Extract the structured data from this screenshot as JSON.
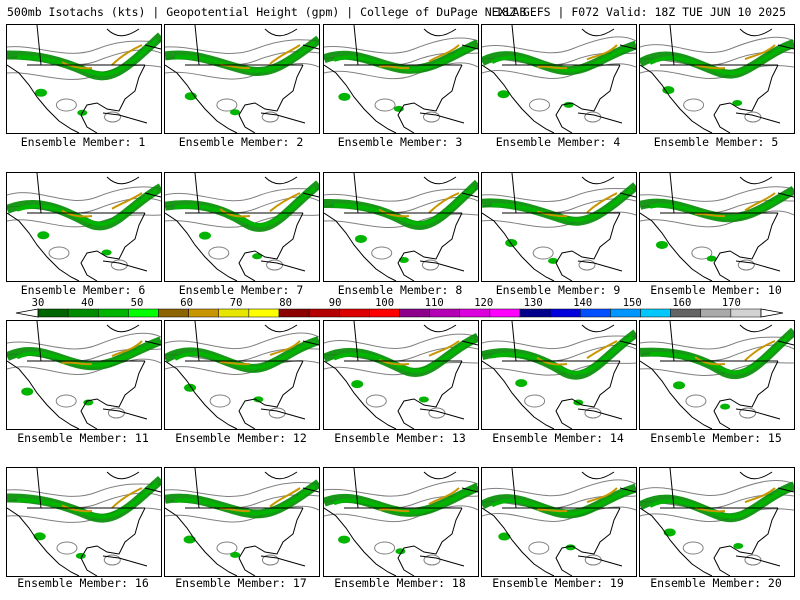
{
  "header": {
    "title_left": "500mb Isotachs (kts) | Geopotential Height (gpm) | College of DuPage NEXLAB",
    "title_right": "18Z GEFS | F072 Valid: 18Z TUE JUN 10 2025"
  },
  "members": [
    {
      "label": "Ensemble Member: 1"
    },
    {
      "label": "Ensemble Member: 2"
    },
    {
      "label": "Ensemble Member: 3"
    },
    {
      "label": "Ensemble Member: 4"
    },
    {
      "label": "Ensemble Member: 5"
    },
    {
      "label": "Ensemble Member: 6"
    },
    {
      "label": "Ensemble Member: 7"
    },
    {
      "label": "Ensemble Member: 8"
    },
    {
      "label": "Ensemble Member: 9"
    },
    {
      "label": "Ensemble Member: 10"
    },
    {
      "label": "Ensemble Member: 11"
    },
    {
      "label": "Ensemble Member: 12"
    },
    {
      "label": "Ensemble Member: 13"
    },
    {
      "label": "Ensemble Member: 14"
    },
    {
      "label": "Ensemble Member: 15"
    },
    {
      "label": "Ensemble Member: 16"
    },
    {
      "label": "Ensemble Member: 17"
    },
    {
      "label": "Ensemble Member: 18"
    },
    {
      "label": "Ensemble Member: 19"
    },
    {
      "label": "Ensemble Member: 20"
    }
  ],
  "colorbar": {
    "ticks": [
      "30",
      "40",
      "50",
      "60",
      "70",
      "80",
      "90",
      "100",
      "110",
      "120",
      "130",
      "140",
      "150",
      "160",
      "170"
    ],
    "colors": [
      "#006400",
      "#008c00",
      "#00b400",
      "#00ff00",
      "#8c6400",
      "#c89600",
      "#e6e600",
      "#ffff00",
      "#8c0000",
      "#b40000",
      "#dc0000",
      "#ff0000",
      "#8c008c",
      "#b400b4",
      "#dc00dc",
      "#ff00ff",
      "#00008c",
      "#0000dc",
      "#0050ff",
      "#0096ff",
      "#00c8ff",
      "#646464",
      "#aaaaaa",
      "#d2d2d2"
    ]
  }
}
